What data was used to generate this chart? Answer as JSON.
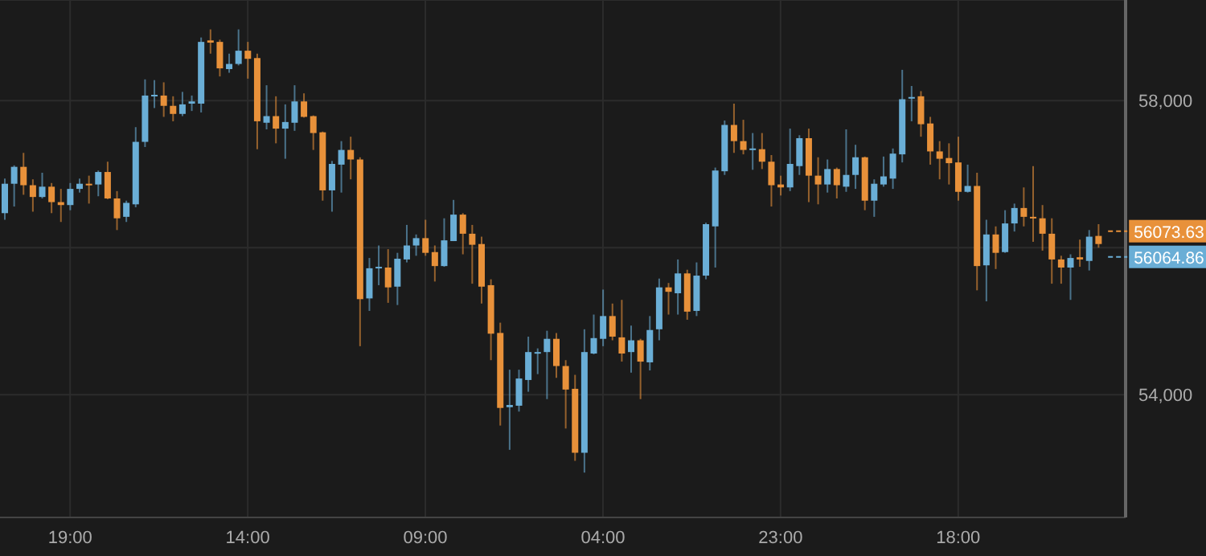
{
  "chart_data": {
    "type": "candlestick",
    "categories": [
      null,
      null,
      null,
      null,
      null,
      null,
      null,
      "19:00",
      null,
      null,
      null,
      null,
      null,
      null,
      null,
      null,
      null,
      null,
      null,
      null,
      null,
      null,
      null,
      null,
      null,
      null,
      "14:00",
      null,
      null,
      null,
      null,
      null,
      null,
      null,
      null,
      null,
      null,
      null,
      null,
      null,
      null,
      null,
      null,
      null,
      null,
      "09:00",
      null,
      null,
      null,
      null,
      null,
      null,
      null,
      null,
      null,
      null,
      null,
      null,
      null,
      null,
      null,
      null,
      null,
      null,
      "04:00",
      null,
      null,
      null,
      null,
      null,
      null,
      null,
      null,
      null,
      null,
      null,
      null,
      null,
      null,
      null,
      null,
      null,
      null,
      "23:00",
      null,
      null,
      null,
      null,
      null,
      null,
      null,
      null,
      null,
      null,
      null,
      null,
      null,
      null,
      null,
      null,
      null,
      null,
      "18:00",
      null,
      null,
      null,
      null,
      null,
      null,
      null,
      null,
      null,
      null,
      null,
      null,
      null,
      null,
      null
    ],
    "ohlc": [
      [
        56470,
        56940,
        56380,
        56870
      ],
      [
        56870,
        57120,
        56560,
        57100
      ],
      [
        57100,
        57290,
        56720,
        56850
      ],
      [
        56850,
        56930,
        56490,
        56690
      ],
      [
        56690,
        57020,
        56670,
        56830
      ],
      [
        56830,
        56880,
        56470,
        56620
      ],
      [
        56620,
        56800,
        56350,
        56580
      ],
      [
        56580,
        56880,
        56510,
        56800
      ],
      [
        56800,
        56940,
        56750,
        56870
      ],
      [
        56870,
        56980,
        56600,
        56860
      ],
      [
        56860,
        57050,
        56700,
        57030
      ],
      [
        57030,
        57170,
        56660,
        56670
      ],
      [
        56670,
        56770,
        56240,
        56400
      ],
      [
        56420,
        56640,
        56350,
        56610
      ],
      [
        56590,
        57640,
        56550,
        57440
      ],
      [
        57440,
        58290,
        57370,
        58070
      ],
      [
        58060,
        58280,
        57900,
        58080
      ],
      [
        58070,
        58250,
        57780,
        57930
      ],
      [
        57930,
        58060,
        57720,
        57820
      ],
      [
        57820,
        58120,
        57790,
        57950
      ],
      [
        57960,
        58070,
        57860,
        57990
      ],
      [
        57960,
        58860,
        57840,
        58800
      ],
      [
        58820,
        58970,
        58640,
        58790
      ],
      [
        58800,
        58830,
        58330,
        58440
      ],
      [
        58430,
        58640,
        58380,
        58500
      ],
      [
        58500,
        58970,
        58480,
        58680
      ],
      [
        58680,
        58800,
        58300,
        58570
      ],
      [
        58580,
        58640,
        57340,
        57720
      ],
      [
        57700,
        58210,
        57610,
        57790
      ],
      [
        57790,
        58060,
        57420,
        57620
      ],
      [
        57620,
        57950,
        57210,
        57710
      ],
      [
        57700,
        58210,
        57590,
        57990
      ],
      [
        57990,
        58100,
        57770,
        57780
      ],
      [
        57790,
        57800,
        57330,
        57560
      ],
      [
        57570,
        57580,
        56640,
        56780
      ],
      [
        56780,
        57180,
        56490,
        57140
      ],
      [
        57130,
        57450,
        56750,
        57330
      ],
      [
        57330,
        57510,
        56930,
        57200
      ],
      [
        57200,
        57230,
        54660,
        55300
      ],
      [
        55310,
        55860,
        55140,
        55720
      ],
      [
        55720,
        56030,
        55490,
        55740
      ],
      [
        55730,
        55980,
        55250,
        55460
      ],
      [
        55470,
        55930,
        55220,
        55850
      ],
      [
        55840,
        56310,
        55800,
        56030
      ],
      [
        56030,
        56180,
        55890,
        56130
      ],
      [
        56130,
        56380,
        55890,
        55930
      ],
      [
        55940,
        56030,
        55540,
        55750
      ],
      [
        55750,
        56400,
        55740,
        56100
      ],
      [
        56090,
        56650,
        56090,
        56450
      ],
      [
        56450,
        56470,
        55910,
        56190
      ],
      [
        56190,
        56310,
        55510,
        56040
      ],
      [
        56050,
        56150,
        55240,
        55470
      ],
      [
        55490,
        55570,
        54470,
        54830
      ],
      [
        54840,
        54980,
        53580,
        53820
      ],
      [
        53830,
        54340,
        53250,
        53860
      ],
      [
        53850,
        54340,
        53770,
        54220
      ],
      [
        54200,
        54790,
        54040,
        54580
      ],
      [
        54560,
        54630,
        54280,
        54580
      ],
      [
        54580,
        54870,
        53940,
        54760
      ],
      [
        54760,
        54840,
        54230,
        54390
      ],
      [
        54390,
        54470,
        53540,
        54070
      ],
      [
        54080,
        54270,
        53100,
        53210
      ],
      [
        53210,
        54890,
        52940,
        54580
      ],
      [
        54560,
        55090,
        54550,
        54770
      ],
      [
        54760,
        55430,
        54660,
        55070
      ],
      [
        55070,
        55240,
        54740,
        54790
      ],
      [
        54780,
        55290,
        54450,
        54560
      ],
      [
        54580,
        54940,
        54300,
        54740
      ],
      [
        54740,
        54760,
        53940,
        54450
      ],
      [
        54440,
        55070,
        54330,
        54880
      ],
      [
        54890,
        55580,
        54740,
        55460
      ],
      [
        55460,
        55520,
        55090,
        55400
      ],
      [
        55380,
        55840,
        55090,
        55650
      ],
      [
        55650,
        55700,
        55020,
        55130
      ],
      [
        55140,
        55800,
        55070,
        55620
      ],
      [
        55620,
        56340,
        55570,
        56320
      ],
      [
        56290,
        57090,
        55730,
        57050
      ],
      [
        57040,
        57730,
        56990,
        57670
      ],
      [
        57670,
        57960,
        57290,
        57450
      ],
      [
        57450,
        57740,
        57270,
        57330
      ],
      [
        57330,
        57560,
        57060,
        57350
      ],
      [
        57340,
        57560,
        57070,
        57170
      ],
      [
        57170,
        57260,
        56560,
        56850
      ],
      [
        56860,
        56980,
        56710,
        56820
      ],
      [
        56820,
        57620,
        56770,
        57140
      ],
      [
        57110,
        57530,
        56990,
        57490
      ],
      [
        57490,
        57620,
        56620,
        56980
      ],
      [
        56980,
        57230,
        56590,
        56860
      ],
      [
        56860,
        57200,
        56750,
        57070
      ],
      [
        57070,
        57090,
        56670,
        56850
      ],
      [
        56830,
        57610,
        56760,
        56990
      ],
      [
        56990,
        57400,
        56800,
        57230
      ],
      [
        57230,
        57240,
        56510,
        56640
      ],
      [
        56640,
        56930,
        56420,
        56870
      ],
      [
        56860,
        57240,
        56830,
        56970
      ],
      [
        56940,
        57350,
        56800,
        57280
      ],
      [
        57270,
        58420,
        57160,
        58020
      ],
      [
        58030,
        58200,
        57720,
        58050
      ],
      [
        58060,
        58130,
        57510,
        57680
      ],
      [
        57690,
        57780,
        57130,
        57310
      ],
      [
        57310,
        57450,
        56930,
        57210
      ],
      [
        57220,
        57420,
        56860,
        57150
      ],
      [
        57160,
        57510,
        56640,
        56760
      ],
      [
        56760,
        57130,
        56750,
        56840
      ],
      [
        56840,
        57020,
        55420,
        55750
      ],
      [
        55760,
        56380,
        55270,
        56180
      ],
      [
        56180,
        56290,
        55710,
        55930
      ],
      [
        55940,
        56510,
        55930,
        56330
      ],
      [
        56330,
        56600,
        56220,
        56540
      ],
      [
        56540,
        56820,
        56290,
        56420
      ],
      [
        56420,
        57110,
        56080,
        56400
      ],
      [
        56400,
        56580,
        55960,
        56190
      ],
      [
        56190,
        56400,
        55510,
        55840
      ],
      [
        55840,
        55890,
        55510,
        55730
      ],
      [
        55730,
        55910,
        55290,
        55860
      ],
      [
        55870,
        56110,
        55740,
        55840
      ],
      [
        55820,
        56240,
        55690,
        56150
      ],
      [
        56160,
        56320,
        56000,
        56050
      ]
    ],
    "colors": [
      "#6aaed6",
      "#6aaed6",
      "#e8913a",
      "#e8913a",
      "#6aaed6",
      "#e8913a",
      "#e8913a",
      "#6aaed6",
      "#6aaed6",
      "#e8913a",
      "#6aaed6",
      "#e8913a",
      "#e8913a",
      "#6aaed6",
      "#6aaed6",
      "#6aaed6",
      "#6aaed6",
      "#e8913a",
      "#e8913a",
      "#6aaed6",
      "#6aaed6",
      "#6aaed6",
      "#e8913a",
      "#e8913a",
      "#6aaed6",
      "#6aaed6",
      "#e8913a",
      "#e8913a",
      "#6aaed6",
      "#e8913a",
      "#6aaed6",
      "#6aaed6",
      "#e8913a",
      "#e8913a",
      "#e8913a",
      "#6aaed6",
      "#6aaed6",
      "#e8913a",
      "#e8913a",
      "#6aaed6",
      "#6aaed6",
      "#e8913a",
      "#6aaed6",
      "#6aaed6",
      "#6aaed6",
      "#e8913a",
      "#e8913a",
      "#6aaed6",
      "#6aaed6",
      "#e8913a",
      "#e8913a",
      "#e8913a",
      "#e8913a",
      "#e8913a",
      "#6aaed6",
      "#6aaed6",
      "#6aaed6",
      "#6aaed6",
      "#6aaed6",
      "#e8913a",
      "#e8913a",
      "#e8913a",
      "#6aaed6",
      "#6aaed6",
      "#6aaed6",
      "#e8913a",
      "#e8913a",
      "#6aaed6",
      "#e8913a",
      "#6aaed6",
      "#6aaed6",
      "#e8913a",
      "#6aaed6",
      "#e8913a",
      "#6aaed6",
      "#6aaed6",
      "#6aaed6",
      "#6aaed6",
      "#e8913a",
      "#e8913a",
      "#6aaed6",
      "#e8913a",
      "#e8913a",
      "#e8913a",
      "#6aaed6",
      "#6aaed6",
      "#e8913a",
      "#e8913a",
      "#6aaed6",
      "#e8913a",
      "#6aaed6",
      "#6aaed6",
      "#e8913a",
      "#6aaed6",
      "#6aaed6",
      "#6aaed6",
      "#6aaed6",
      "#6aaed6",
      "#e8913a",
      "#e8913a",
      "#e8913a",
      "#e8913a",
      "#e8913a",
      "#6aaed6",
      "#e8913a",
      "#6aaed6",
      "#e8913a",
      "#6aaed6",
      "#6aaed6",
      "#e8913a",
      "#e8913a",
      "#e8913a",
      "#e8913a",
      "#e8913a",
      "#6aaed6",
      "#e8913a",
      "#6aaed6",
      "#e8913a"
    ],
    "ylim": [
      52330,
      59370
    ],
    "yticks": [
      {
        "value": 54000,
        "label": "54,000"
      },
      {
        "value": 56000,
        "label": null
      },
      {
        "value": 58000,
        "label": "58,000"
      }
    ],
    "grid": true,
    "annotations": [
      "56073.63",
      "56064.86"
    ]
  }
}
